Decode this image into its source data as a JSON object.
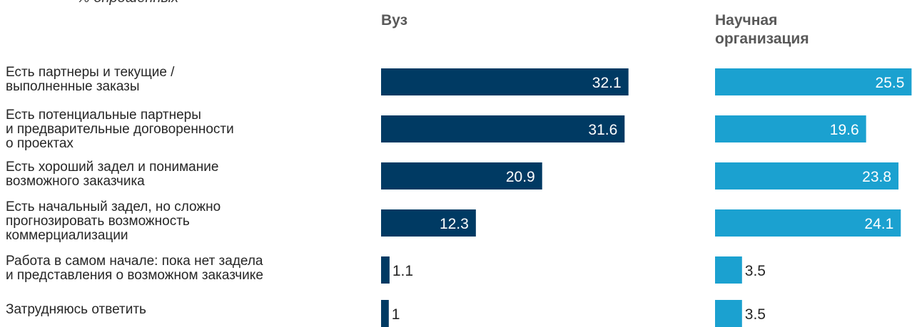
{
  "chart_data": {
    "type": "bar",
    "orientation": "horizontal",
    "subtitle": "% опрошенных",
    "categories": [
      "Есть партнеры и текущие /\nвыполненные заказы",
      "Есть потенциальные партнеры\nи предварительные договоренности\nо проектах",
      "Есть хороший задел и понимание\nвозможного заказчика",
      "Есть начальный задел, но сложно\nпрогнозировать возможность\nкоммерциализации",
      "Работа в самом начале: пока нет задела\nи представления о возможном заказчике",
      "Затрудняюсь ответить"
    ],
    "series": [
      {
        "name": "Вуз",
        "values": [
          32.1,
          31.6,
          20.9,
          12.3,
          1.1,
          1
        ],
        "labels": [
          "32.1",
          "31.6",
          "20.9",
          "12.3",
          "1.1",
          "1"
        ],
        "color": "#003A63"
      },
      {
        "name": "Научная\nорганизация",
        "values": [
          25.5,
          19.6,
          23.8,
          24.1,
          3.5,
          3.5
        ],
        "labels": [
          "25.5",
          "19.6",
          "23.8",
          "24.1",
          "3.5",
          "3.5"
        ],
        "color": "#1BA1D0"
      }
    ],
    "data_label_colors": {
      "inside": "#ffffff",
      "outside": "#262626"
    }
  }
}
